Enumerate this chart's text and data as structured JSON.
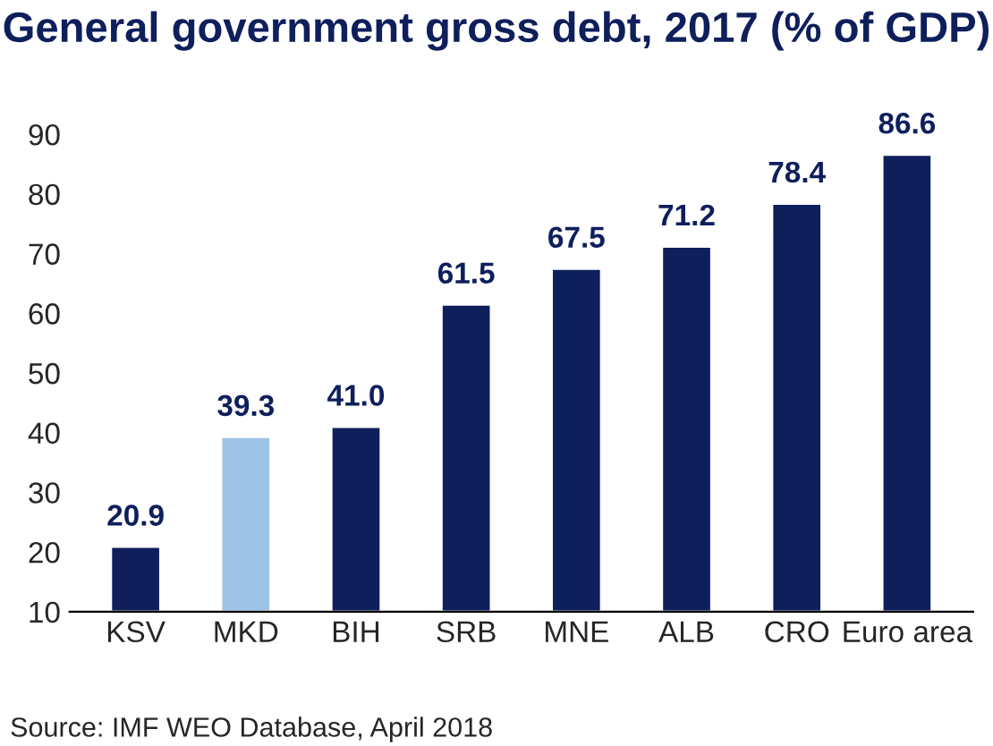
{
  "chart_data": {
    "type": "bar",
    "title": "General government gross debt, 2017 (% of GDP)",
    "categories": [
      "KSV",
      "MKD",
      "BIH",
      "SRB",
      "MNE",
      "ALB",
      "CRO",
      "Euro area"
    ],
    "values": [
      20.9,
      39.3,
      41.0,
      61.5,
      67.5,
      71.2,
      78.4,
      86.6
    ],
    "value_labels": [
      "20.9",
      "39.3",
      "41.0",
      "61.5",
      "67.5",
      "71.2",
      "78.4",
      "86.6"
    ],
    "colors": [
      "#0f1f5c",
      "#9dc3e6",
      "#0f1f5c",
      "#0f1f5c",
      "#0f1f5c",
      "#0f1f5c",
      "#0f1f5c",
      "#0f1f5c"
    ],
    "ylim": [
      10,
      90
    ],
    "yticks": [
      10,
      20,
      30,
      40,
      50,
      60,
      70,
      80,
      90
    ],
    "grid": false,
    "legend": false,
    "annotations": [
      "Source: IMF WEO Database, April 2018"
    ]
  }
}
